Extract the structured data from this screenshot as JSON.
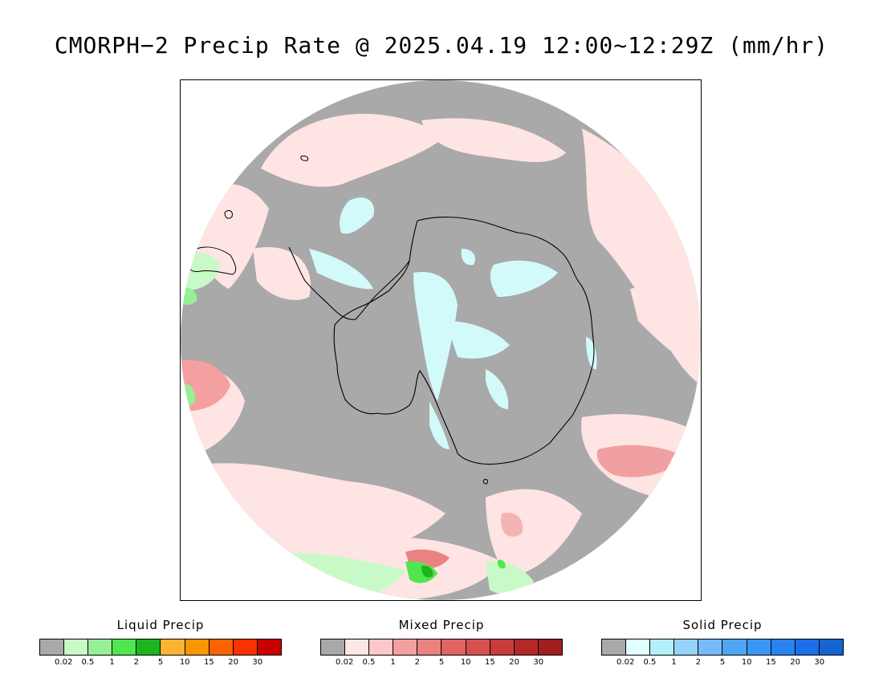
{
  "title": "CMORPH−2 Precip Rate @ 2025.04.19 12:00~12:29Z (mm/hr)",
  "map": {
    "projection": "south-polar-stereographic",
    "background_color": "#a9a9a9",
    "coastline_color": "#000000"
  },
  "legends": [
    {
      "id": "liquid",
      "title": "Liquid Precip",
      "colors": [
        "#a9a9a9",
        "#c8fac8",
        "#96f096",
        "#50e650",
        "#1eb41e",
        "#fab432",
        "#fa9600",
        "#fa6400",
        "#fa3200",
        "#c80000"
      ],
      "tick_labels": [
        "0.02",
        "0.5",
        "1",
        "2",
        "5",
        "10",
        "15",
        "20",
        "30"
      ]
    },
    {
      "id": "mixed",
      "title": "Mixed Precip",
      "colors": [
        "#a9a9a9",
        "#ffe6e6",
        "#ffc8c8",
        "#f5a0a0",
        "#eb8282",
        "#e16464",
        "#d75050",
        "#c83c3c",
        "#b42828",
        "#a01e1e"
      ],
      "tick_labels": [
        "0.02",
        "0.5",
        "1",
        "2",
        "5",
        "10",
        "15",
        "20",
        "30"
      ]
    },
    {
      "id": "solid",
      "title": "Solid Precip",
      "colors": [
        "#a9a9a9",
        "#e1ffff",
        "#b4f0fa",
        "#96d2fa",
        "#78b9fa",
        "#50a5f5",
        "#3c96f5",
        "#2882f0",
        "#1e6eeb",
        "#1464d2"
      ],
      "tick_labels": [
        "0.02",
        "0.5",
        "1",
        "2",
        "5",
        "10",
        "15",
        "20",
        "30"
      ]
    }
  ]
}
